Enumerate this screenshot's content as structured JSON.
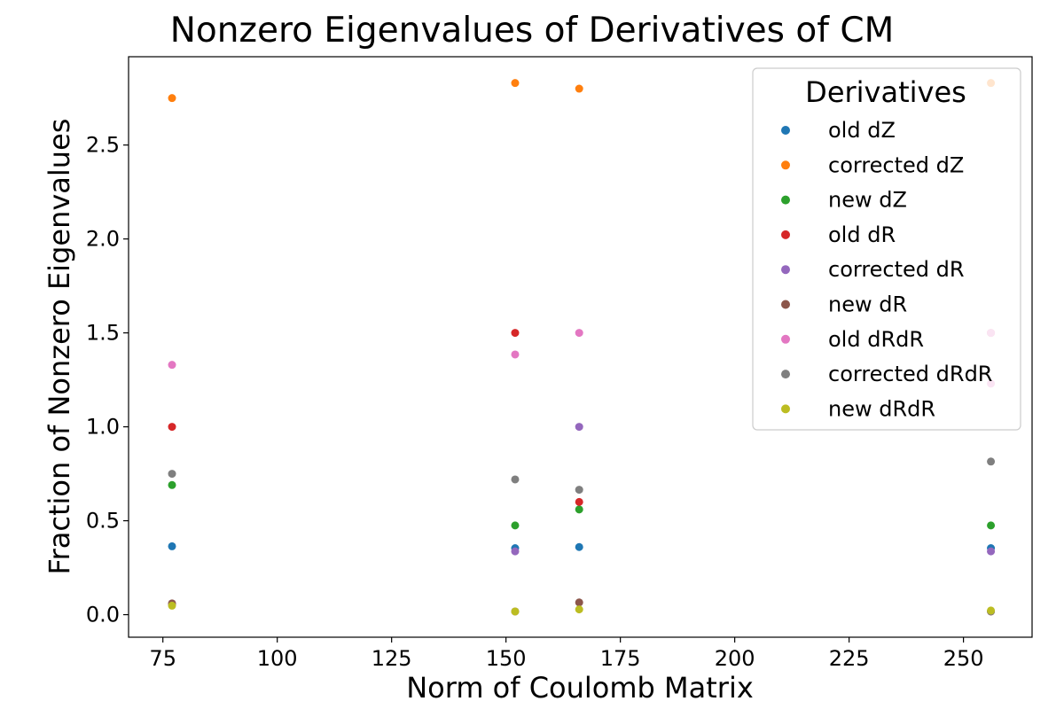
{
  "chart_data": {
    "type": "scatter",
    "title": "Nonzero Eigenvalues of Derivatives of CM",
    "xlabel": "Norm of Coulomb Matrix",
    "ylabel": "Fraction of Nonzero Eigenvalues",
    "xlim": [
      67.5,
      265
    ],
    "ylim": [
      -0.12,
      2.97
    ],
    "xticks": [
      75,
      100,
      125,
      150,
      175,
      200,
      225,
      250
    ],
    "yticks": [
      0.0,
      0.5,
      1.0,
      1.5,
      2.0,
      2.5
    ],
    "grid": false,
    "legend": {
      "title": "Derivatives",
      "position": "top-right"
    },
    "series": [
      {
        "name": "old dZ",
        "color": "#1f77b4",
        "points": [
          [
            77,
            0.364
          ],
          [
            152,
            0.354
          ],
          [
            166,
            0.36
          ],
          [
            256,
            0.354
          ]
        ]
      },
      {
        "name": "corrected dZ",
        "color": "#ff7f0e",
        "points": [
          [
            77,
            2.75
          ],
          [
            152,
            2.83
          ],
          [
            166,
            2.8
          ],
          [
            256,
            2.83
          ]
        ]
      },
      {
        "name": "new dZ",
        "color": "#2ca02c",
        "points": [
          [
            77,
            0.69
          ],
          [
            152,
            0.475
          ],
          [
            166,
            0.56
          ],
          [
            256,
            0.475
          ]
        ]
      },
      {
        "name": "old dR",
        "color": "#d62728",
        "points": [
          [
            77,
            1.0
          ],
          [
            152,
            1.5
          ],
          [
            166,
            0.6
          ],
          [
            256,
            1.5
          ]
        ]
      },
      {
        "name": "corrected dR",
        "color": "#9467bd",
        "points": [
          [
            77,
            0.056
          ],
          [
            152,
            0.337
          ],
          [
            166,
            1.0
          ],
          [
            256,
            0.337
          ]
        ]
      },
      {
        "name": "new dR",
        "color": "#8c564b",
        "points": [
          [
            77,
            0.06
          ],
          [
            152,
            0.017
          ],
          [
            166,
            0.065
          ],
          [
            256,
            0.017
          ]
        ]
      },
      {
        "name": "old dRdR",
        "color": "#e377c2",
        "points": [
          [
            77,
            1.33
          ],
          [
            152,
            1.385
          ],
          [
            166,
            1.5
          ],
          [
            256,
            1.5
          ],
          [
            256,
            1.23
          ]
        ]
      },
      {
        "name": "corrected dRdR",
        "color": "#7f7f7f",
        "points": [
          [
            77,
            0.75
          ],
          [
            152,
            0.72
          ],
          [
            166,
            0.665
          ],
          [
            256,
            0.815
          ],
          [
            256,
            0.018
          ]
        ]
      },
      {
        "name": "new dRdR",
        "color": "#bcbd22",
        "points": [
          [
            77,
            0.048
          ],
          [
            152,
            0.017
          ],
          [
            166,
            0.028
          ],
          [
            256,
            0.022
          ]
        ]
      }
    ]
  }
}
